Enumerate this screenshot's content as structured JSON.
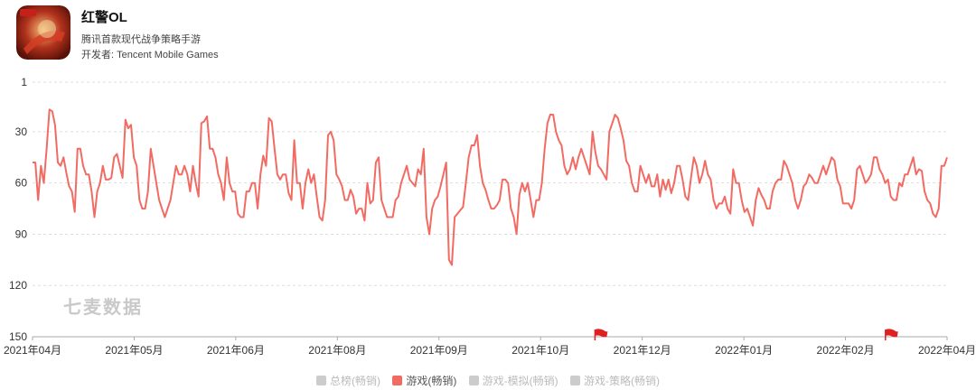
{
  "app": {
    "title": "红警OL",
    "subtitle": "腾讯首款现代战争策略手游",
    "developer": "开发者: Tencent Mobile Games",
    "icon": "game-app-icon"
  },
  "watermark": "七麦数据",
  "colors": {
    "series": "#f26b63",
    "grid": "#dddddd",
    "axis": "#aaaaaa",
    "flag": "#e02020",
    "legend_inactive": "#cccccc"
  },
  "legend": [
    {
      "label": "总榜(畅销)",
      "active": false
    },
    {
      "label": "游戏(畅销)",
      "active": true
    },
    {
      "label": "游戏-模拟(畅销)",
      "active": false
    },
    {
      "label": "游戏-策略(畅销)",
      "active": false
    }
  ],
  "chart_data": {
    "type": "line",
    "y_inverted": true,
    "ylim": [
      1,
      150
    ],
    "y_ticks": [
      1,
      30,
      60,
      90,
      120,
      150
    ],
    "x_ticks": [
      "2021年04月",
      "2021年05月",
      "2021年06月",
      "2021年08月",
      "2021年09月",
      "2021年10月",
      "2021年12月",
      "2022年01月",
      "2022年02月",
      "2022年04月"
    ],
    "grid": true,
    "markers": [
      {
        "type": "flag",
        "after_tick": 5
      },
      {
        "type": "flag",
        "after_tick": 8
      }
    ],
    "series": [
      {
        "name": "游戏(畅销)",
        "values": [
          48,
          48,
          70,
          50,
          60,
          40,
          17,
          18,
          26,
          48,
          50,
          45,
          54,
          62,
          65,
          77,
          40,
          40,
          50,
          55,
          55,
          65,
          80,
          65,
          60,
          50,
          58,
          58,
          57,
          45,
          43,
          50,
          57,
          23,
          28,
          26,
          45,
          50,
          70,
          75,
          75,
          65,
          40,
          50,
          60,
          70,
          75,
          80,
          75,
          70,
          60,
          50,
          55,
          55,
          50,
          55,
          65,
          50,
          60,
          68,
          25,
          24,
          21,
          40,
          40,
          45,
          55,
          60,
          70,
          45,
          60,
          65,
          65,
          78,
          80,
          80,
          65,
          65,
          60,
          60,
          75,
          55,
          44,
          50,
          22,
          24,
          40,
          55,
          58,
          55,
          55,
          66,
          70,
          35,
          60,
          60,
          75,
          60,
          52,
          60,
          55,
          68,
          80,
          82,
          70,
          32,
          30,
          35,
          55,
          58,
          62,
          70,
          70,
          64,
          68,
          78,
          75,
          75,
          82,
          60,
          72,
          70,
          48,
          45,
          70,
          75,
          80,
          80,
          80,
          70,
          68,
          60,
          55,
          50,
          58,
          60,
          62,
          52,
          55,
          40,
          80,
          90,
          75,
          70,
          68,
          62,
          55,
          48,
          105,
          108,
          80,
          78,
          76,
          74,
          60,
          45,
          38,
          38,
          32,
          50,
          60,
          64,
          70,
          75,
          75,
          73,
          70,
          58,
          58,
          60,
          75,
          80,
          90,
          67,
          60,
          65,
          60,
          70,
          80,
          70,
          70,
          60,
          40,
          25,
          20,
          20,
          30,
          35,
          38,
          50,
          55,
          52,
          45,
          52,
          45,
          40,
          45,
          50,
          55,
          30,
          42,
          50,
          52,
          55,
          58,
          30,
          25,
          20,
          22,
          28,
          35,
          47,
          50,
          60,
          65,
          65,
          50,
          55,
          60,
          55,
          62,
          62,
          55,
          68,
          58,
          64,
          58,
          66,
          60,
          50,
          50,
          58,
          68,
          70,
          57,
          45,
          50,
          60,
          55,
          47,
          55,
          58,
          70,
          75,
          72,
          72,
          68,
          75,
          78,
          52,
          60,
          60,
          70,
          77,
          75,
          80,
          85,
          70,
          63,
          67,
          70,
          75,
          75,
          65,
          60,
          58,
          58,
          47,
          50,
          55,
          60,
          70,
          75,
          70,
          62,
          60,
          55,
          57,
          60,
          60,
          55,
          50,
          55,
          50,
          45,
          47,
          58,
          62,
          72,
          72,
          72,
          75,
          70,
          52,
          50,
          55,
          60,
          58,
          55,
          45,
          45,
          52,
          55,
          60,
          58,
          68,
          70,
          70,
          60,
          62,
          55,
          55,
          50,
          45,
          55,
          52,
          53,
          65,
          70,
          72,
          78,
          80,
          75,
          50,
          50,
          45
        ]
      }
    ]
  }
}
